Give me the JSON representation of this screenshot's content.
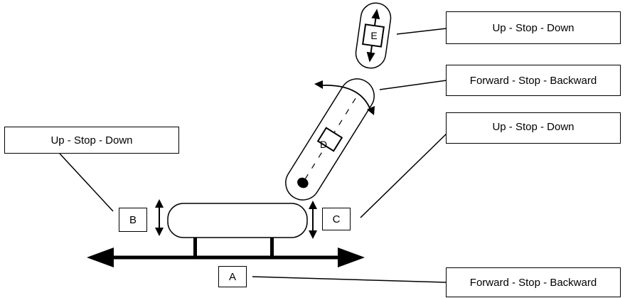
{
  "labels": {
    "e": "Up - Stop - Down",
    "d": "Forward - Stop - Backward",
    "c": "Up - Stop - Down",
    "b": "Up - Stop - Down",
    "a": "Forward - Stop - Backward"
  },
  "tags": {
    "a": "A",
    "b": "B",
    "c": "C",
    "d": "D",
    "e": "E"
  }
}
